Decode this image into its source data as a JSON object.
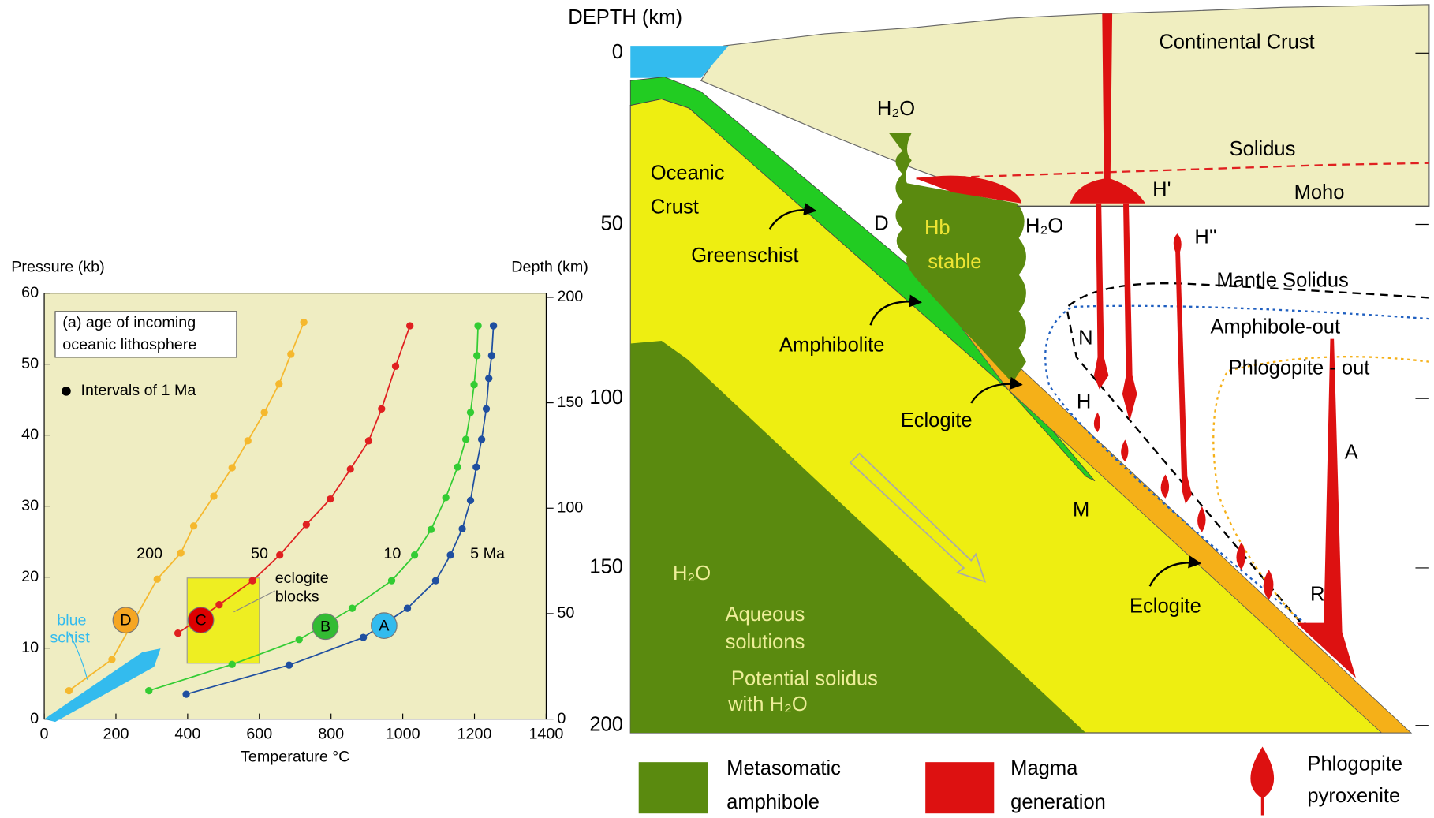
{
  "chart_data": {
    "type": "line",
    "x_label": "Temperature °C",
    "y_label": "Pressure (kb)",
    "y2_label": "Depth (km)",
    "xlim": [
      0,
      1400
    ],
    "xticks": [
      0,
      200,
      400,
      600,
      800,
      1000,
      1200,
      1400
    ],
    "ylim": [
      0,
      60
    ],
    "yticks": [
      0,
      10,
      20,
      30,
      40,
      50,
      60
    ],
    "y2lim": [
      0,
      202
    ],
    "y2ticks": [
      0,
      50,
      100,
      150,
      200
    ],
    "box_title": [
      "(a) age of incoming",
      "oceanic lithosphere"
    ],
    "dot_legend": "Intervals of 1 Ma",
    "eclogite_blocks": [
      "eclogite",
      "blocks"
    ],
    "blueschist": [
      "blue",
      "schist"
    ],
    "series": [
      {
        "name": "200",
        "marker": "D",
        "color": "#f5b82e",
        "x": [
          69,
          189,
          315,
          381,
          417,
          473,
          524,
          568,
          614,
          655,
          688,
          724
        ],
        "values": [
          4.0,
          8.4,
          19.7,
          23.4,
          27.2,
          31.4,
          35.4,
          39.2,
          43.2,
          47.2,
          51.4,
          55.9
        ]
      },
      {
        "name": "50",
        "marker": "C",
        "color": "#e02020",
        "x": [
          373,
          488,
          581,
          657,
          731,
          798,
          854,
          905,
          941,
          980,
          1020
        ],
        "values": [
          12.1,
          16.1,
          19.5,
          23.1,
          27.4,
          31.0,
          35.2,
          39.2,
          43.7,
          49.7,
          55.4
        ]
      },
      {
        "name": "10",
        "marker": "B",
        "color": "#33cc33",
        "x": [
          292,
          524,
          711,
          859,
          969,
          1033,
          1079,
          1120,
          1153,
          1176,
          1189,
          1199,
          1207,
          1210
        ],
        "values": [
          4.0,
          7.7,
          11.2,
          15.6,
          19.5,
          23.1,
          26.7,
          31.2,
          35.5,
          39.4,
          43.2,
          47.1,
          51.2,
          55.4
        ]
      },
      {
        "name": "5 Ma",
        "marker": "A",
        "color": "#1f4fa0",
        "x": [
          396,
          683,
          890,
          1013,
          1092,
          1133,
          1166,
          1189,
          1205,
          1220,
          1233,
          1240,
          1248,
          1253
        ],
        "values": [
          3.5,
          7.6,
          11.5,
          15.6,
          19.5,
          23.1,
          26.8,
          30.8,
          35.5,
          39.4,
          43.7,
          48.0,
          51.2,
          55.4
        ]
      }
    ]
  },
  "diagram": {
    "axis_title": "DEPTH (km)",
    "depth_ticks": [
      0,
      50,
      100,
      150,
      200
    ],
    "labels": {
      "continental_crust": "Continental Crust",
      "solidus": "Solidus",
      "moho": "Moho",
      "oceanic_crust": [
        "Oceanic",
        "Crust"
      ],
      "greenschist": "Greenschist",
      "amphibolite": "Amphibolite",
      "eclogite_upper": "Eclogite",
      "eclogite_lower": "Eclogite",
      "h2o_top": "H₂O",
      "h2o_right": "H₂O",
      "h2o_slab": "H₂O",
      "d": "D",
      "hb_stable": [
        "Hb",
        "stable"
      ],
      "h_prime": "H'",
      "h_double_prime": "H''",
      "mantle_solidus": "Mantle Solidus",
      "amphibole_out": "Amphibole-out",
      "phlogopite_out": "Phlogopite - out",
      "n": "N",
      "h": "H",
      "a": "A",
      "r": "R",
      "m": "M",
      "aqueous_solutions": [
        "Aqueous",
        "solutions"
      ],
      "potential_solidus": [
        "Potential solidus",
        "with H₂O"
      ]
    }
  },
  "legend": {
    "metasomatic_amphibole": [
      "Metasomatic",
      "amphibole"
    ],
    "magma_generation": [
      "Magma",
      "generation"
    ],
    "phlogopite_pyroxenite": [
      "Phlogopite",
      "pyroxenite"
    ]
  }
}
